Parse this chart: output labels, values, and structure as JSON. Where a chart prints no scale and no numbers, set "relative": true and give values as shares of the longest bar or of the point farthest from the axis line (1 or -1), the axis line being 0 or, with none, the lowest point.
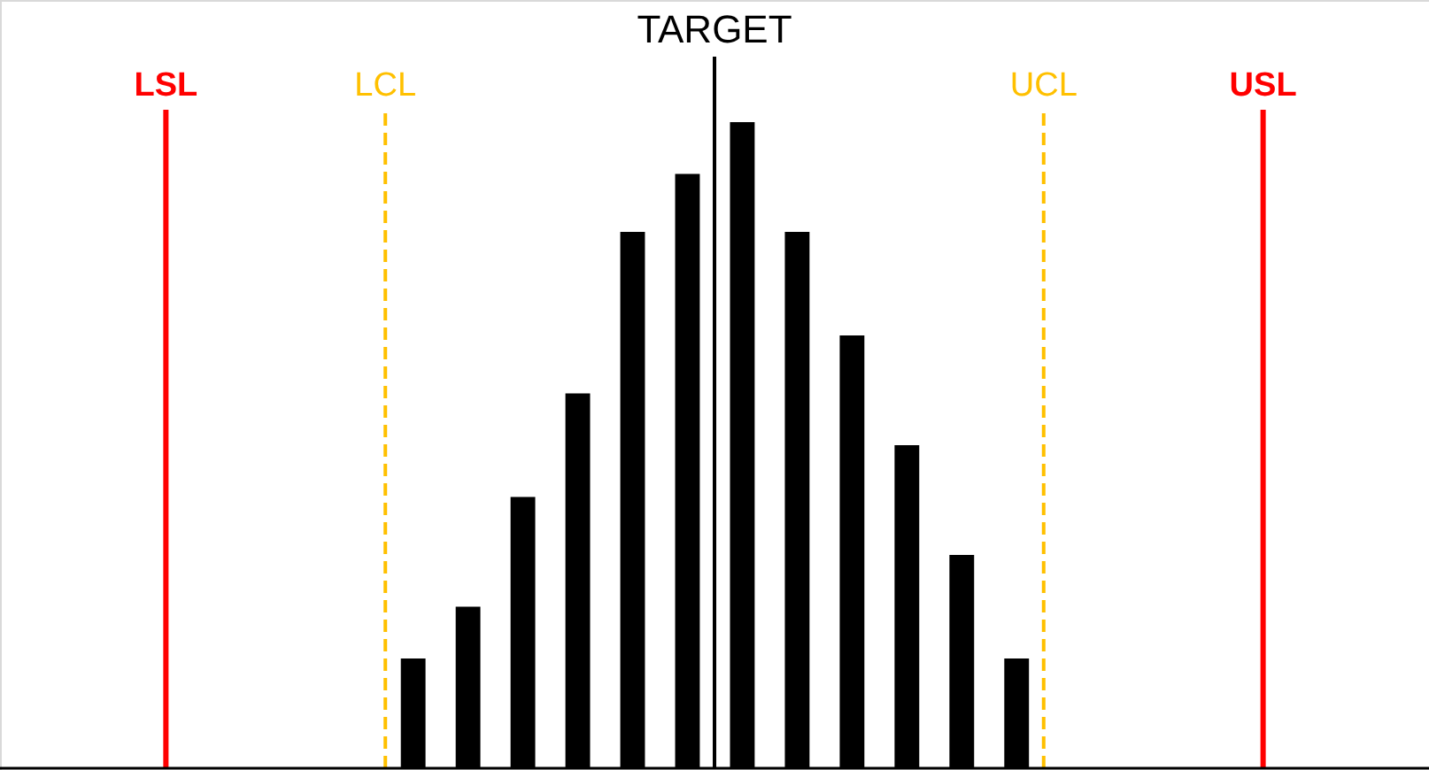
{
  "chart_data": {
    "type": "bar",
    "relative": true,
    "tick_labels": "x",
    "color": "#000000",
    "categories": [
      null,
      null,
      null,
      null,
      null,
      null,
      "LSL",
      null,
      null,
      null,
      null,
      null,
      null,
      null,
      "LCL",
      null,
      null,
      null,
      null,
      null,
      null,
      null,
      null,
      null,
      null,
      null,
      "TARGET",
      null,
      null,
      null,
      null,
      null,
      null,
      null,
      null,
      null,
      null,
      null,
      "UCL",
      null,
      null,
      null,
      null,
      null,
      null,
      null,
      "USL",
      null,
      null,
      null,
      null,
      null,
      null
    ],
    "values": [
      null,
      null,
      null,
      null,
      null,
      null,
      null,
      null,
      null,
      null,
      null,
      null,
      null,
      null,
      null,
      0.17,
      null,
      0.25,
      null,
      0.42,
      null,
      0.58,
      null,
      0.83,
      null,
      0.92,
      null,
      1,
      null,
      0.83,
      null,
      0.67,
      null,
      0.5,
      null,
      0.33,
      null,
      0.17,
      null,
      null,
      null,
      null,
      null,
      null,
      null,
      null,
      null,
      null,
      null,
      null,
      null,
      null,
      null
    ],
    "ref_lines": [
      {
        "axis": "x",
        "value": "LSL",
        "color": "#ff0000",
        "line_style": "solid"
      },
      {
        "axis": "x",
        "value": "LCL",
        "color": "#ffc000",
        "line_style": "dashed"
      },
      {
        "axis": "x",
        "value": "TARGET",
        "color": "#000000",
        "line_style": "solid"
      },
      {
        "axis": "x",
        "value": "UCL",
        "color": "#ffc000",
        "line_style": "dashed"
      },
      {
        "axis": "x",
        "value": "USL",
        "color": "#ff0000",
        "line_style": "solid"
      }
    ]
  }
}
